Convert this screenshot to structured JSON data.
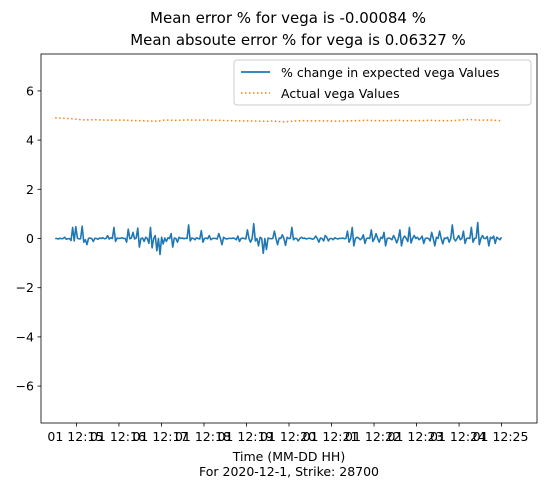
{
  "chart_data": {
    "type": "line",
    "title": "Mean error % for vega is -0.00084 %",
    "subtitle": "Mean absoute error % for vega is 0.06327 %",
    "xlabel": "Time (MM-DD HH)",
    "xlabel2": "For 2020-12-1, Strike: 28700",
    "ylabel": "",
    "xlim": [
      "12-01 12:14:10",
      "12-01 12:25:50"
    ],
    "ylim": [
      -7.5,
      7.5
    ],
    "yticks": [
      -6,
      -4,
      -2,
      0,
      2,
      4,
      6
    ],
    "yticklabels": [
      "−6",
      "−4",
      "−2",
      "0",
      "2",
      "4",
      "6"
    ],
    "xticks": [
      "12-01 12:15",
      "12-01 12:16",
      "12-01 12:17",
      "12-01 12:18",
      "12-01 12:19",
      "12-01 12:20",
      "12-01 12:21",
      "12-01 12:22",
      "12-01 12:23",
      "12-01 12:24",
      "12-01 12:25"
    ],
    "xtick_rows": [
      [
        "01 12:15",
        "01 12:16"
      ],
      [
        "01 12:16",
        "01 12:17"
      ],
      [
        "01 12:17",
        "01 12:18"
      ],
      [
        "01 12:18",
        "01 12:19"
      ],
      [
        "01 12:19",
        "01 12:20"
      ],
      [
        "01 12:20",
        "01 12:21"
      ],
      [
        "01 12:21",
        "01 12:22"
      ],
      [
        "01 12:22",
        "01 12:23"
      ],
      [
        "01 12:23",
        "01 12:24"
      ],
      [
        "01 12:24",
        "01 12:25"
      ]
    ],
    "xtick_last": "01 12:25",
    "x_start": "12-01 12:14:30",
    "x_end": "12-01 12:25:00",
    "legend_position": "top-right",
    "grid": false,
    "series": [
      {
        "name": "% change in expected vega Values",
        "style": "solid",
        "color": "#1f77b4",
        "values": [
          0.0,
          0.0,
          -0.02,
          0.01,
          -0.01,
          0.0,
          0.05,
          -0.03,
          -0.01,
          0.0,
          -0.08,
          0.45,
          -0.1,
          0.48,
          0.02,
          -0.02,
          -0.01,
          0.5,
          -0.15,
          -0.05,
          -0.25,
          0.01,
          0.02,
          0.0,
          -0.12,
          0.01,
          0.0,
          -0.03,
          0.02,
          0.0,
          0.03,
          -0.01,
          0.0,
          0.12,
          -0.02,
          0.03,
          0.0,
          0.45,
          -0.12,
          0.02,
          0.0,
          0.01,
          0.03,
          0.0,
          0.01,
          -0.15,
          0.38,
          -0.01,
          0.02,
          0.25,
          -0.02,
          0.02,
          0.42,
          -0.35,
          0.0,
          0.02,
          -0.12,
          0.05,
          0.0,
          -0.2,
          0.45,
          -0.38,
          0.0,
          0.12,
          -0.5,
          0.0,
          -0.65,
          0.05,
          -0.22,
          0.02,
          -0.12,
          0.03,
          0.0,
          0.2,
          -0.35,
          0.02,
          0.0,
          -0.15,
          0.05,
          0.0,
          0.02,
          -0.01,
          0.01,
          0.0,
          0.55,
          -0.1,
          0.02,
          0.0,
          -0.05,
          0.03,
          0.0,
          -0.02,
          0.32,
          -0.15,
          0.0,
          0.02,
          -0.01,
          0.12,
          -0.05,
          0.0,
          0.01,
          0.0,
          -0.02,
          0.2,
          0.0,
          -0.25,
          0.05,
          0.0,
          -0.02,
          0.0,
          0.01,
          0.0,
          0.02,
          0.0,
          -0.05,
          0.1,
          -0.12,
          0.0,
          0.02,
          0.0,
          -0.02,
          0.35,
          0.0,
          -0.15,
          0.0,
          0.6,
          -0.1,
          0.0,
          -0.3,
          0.05,
          0.0,
          -0.6,
          0.0,
          -0.45,
          0.02,
          0.0,
          -0.01,
          0.0,
          0.3,
          0.0,
          -0.25,
          0.02,
          0.0,
          0.15,
          0.0,
          -0.28,
          0.05,
          0.0,
          0.0,
          0.45,
          -0.05,
          0.01,
          0.0,
          -0.1,
          0.0,
          0.05,
          0.0,
          0.02,
          -0.02,
          0.0,
          0.01,
          0.0,
          -0.03,
          0.0,
          0.1,
          0.0,
          -0.15,
          0.02,
          0.0,
          -0.1,
          0.12,
          0.05,
          -0.1,
          0.0,
          0.0,
          -0.05,
          0.03,
          0.0,
          -0.02,
          0.01,
          0.0,
          0.02,
          -0.01,
          0.0,
          0.3,
          -0.15,
          0.0,
          0.45,
          -0.3,
          0.0,
          0.05,
          0.02,
          -0.05,
          0.0,
          0.15,
          -0.2,
          0.0,
          0.02,
          0.0,
          0.35,
          -0.12,
          0.0,
          0.2,
          0.0,
          -0.15,
          0.05,
          0.0,
          0.25,
          -0.3,
          0.0,
          0.02,
          0.0,
          -0.05,
          0.12,
          0.0,
          -0.18,
          0.0,
          0.35,
          -0.3,
          0.0,
          0.1,
          0.0,
          -0.12,
          0.45,
          -0.18,
          0.0,
          0.12,
          0.0,
          0.05,
          -0.05,
          0.0,
          0.1,
          -0.2,
          0.0,
          0.02,
          0.0,
          -0.1,
          0.25,
          0.0,
          -0.3,
          0.05,
          0.0,
          0.3,
          0.0,
          -0.22,
          0.02,
          0.0,
          0.05,
          -0.15,
          0.0,
          0.55,
          0.0,
          -0.1,
          0.0,
          0.12,
          -0.05,
          0.0,
          0.3,
          -0.2,
          0.0,
          0.02,
          0.0,
          0.45,
          -0.15,
          0.0,
          0.02,
          0.65,
          -0.25,
          0.0,
          0.12,
          0.0,
          0.0,
          0.08,
          -0.3,
          0.05,
          0.0,
          0.1,
          -0.2,
          0.05,
          0.0,
          -0.05,
          0.05
        ]
      },
      {
        "name": "Actual vega Values",
        "style": "dotted",
        "color": "#ff7f0e",
        "values": [
          4.91,
          4.89,
          4.88,
          4.87,
          4.84,
          4.82,
          4.82,
          4.83,
          4.82,
          4.81,
          4.81,
          4.81,
          4.81,
          4.8,
          4.79,
          4.79,
          4.78,
          4.77,
          4.77,
          4.81,
          4.81,
          4.8,
          4.81,
          4.82,
          4.81,
          4.81,
          4.82,
          4.81,
          4.8,
          4.8,
          4.79,
          4.79,
          4.78,
          4.78,
          4.78,
          4.77,
          4.77,
          4.76,
          4.78,
          4.76,
          4.74,
          4.76,
          4.78,
          4.79,
          4.79,
          4.78,
          4.79,
          4.78,
          4.78,
          4.77,
          4.77,
          4.78,
          4.79,
          4.79,
          4.8,
          4.8,
          4.79,
          4.79,
          4.79,
          4.8,
          4.8,
          4.79,
          4.79,
          4.79,
          4.79,
          4.8,
          4.8,
          4.79,
          4.79,
          4.79,
          4.8,
          4.82,
          4.83,
          4.83,
          4.81,
          4.81,
          4.82,
          4.8,
          4.79
        ]
      }
    ]
  }
}
